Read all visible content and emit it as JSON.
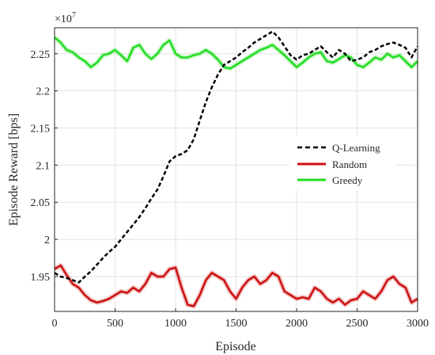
{
  "chart_data": {
    "type": "line",
    "title": "",
    "xlabel": "Episode",
    "ylabel": "Episode Reward [bps]",
    "exponent_label": "×10",
    "exponent_power": "7",
    "xlim": [
      0,
      3000
    ],
    "ylim": [
      1.903,
      2.285
    ],
    "x_ticks": [
      0,
      500,
      1000,
      1500,
      2000,
      2500,
      3000
    ],
    "y_ticks": [
      1.95,
      2.0,
      2.05,
      2.1,
      2.15,
      2.2,
      2.25
    ],
    "grid": true,
    "legend_position": "right",
    "series": [
      {
        "name": "Q-Learning",
        "color": "#000000",
        "style": "dashed",
        "x": [
          0,
          50,
          100,
          150,
          200,
          250,
          300,
          350,
          400,
          450,
          500,
          550,
          600,
          650,
          700,
          750,
          800,
          850,
          900,
          950,
          1000,
          1050,
          1100,
          1150,
          1200,
          1250,
          1300,
          1350,
          1400,
          1450,
          1500,
          1550,
          1600,
          1650,
          1700,
          1750,
          1800,
          1850,
          1900,
          1950,
          2000,
          2050,
          2100,
          2150,
          2200,
          2250,
          2300,
          2350,
          2400,
          2450,
          2500,
          2550,
          2600,
          2650,
          2700,
          2750,
          2800,
          2850,
          2900,
          2950,
          3000
        ],
        "values": [
          1.955,
          1.95,
          1.948,
          1.945,
          1.942,
          1.95,
          1.957,
          1.966,
          1.975,
          1.983,
          1.99,
          2.0,
          2.01,
          2.02,
          2.03,
          2.042,
          2.055,
          2.067,
          2.085,
          2.105,
          2.112,
          2.115,
          2.12,
          2.135,
          2.16,
          2.185,
          2.205,
          2.222,
          2.235,
          2.24,
          2.245,
          2.252,
          2.258,
          2.265,
          2.27,
          2.275,
          2.28,
          2.272,
          2.26,
          2.248,
          2.242,
          2.248,
          2.25,
          2.255,
          2.26,
          2.252,
          2.245,
          2.255,
          2.25,
          2.24,
          2.242,
          2.245,
          2.252,
          2.255,
          2.26,
          2.263,
          2.265,
          2.262,
          2.258,
          2.245,
          2.26
        ]
      },
      {
        "name": "Random",
        "color": "#cc1010",
        "style": "solid",
        "x": [
          0,
          50,
          100,
          150,
          200,
          250,
          300,
          350,
          400,
          450,
          500,
          550,
          600,
          650,
          700,
          750,
          800,
          850,
          900,
          950,
          1000,
          1050,
          1100,
          1150,
          1200,
          1250,
          1300,
          1350,
          1400,
          1450,
          1500,
          1550,
          1600,
          1650,
          1700,
          1750,
          1800,
          1850,
          1900,
          1950,
          2000,
          2050,
          2100,
          2150,
          2200,
          2250,
          2300,
          2350,
          2400,
          2450,
          2500,
          2550,
          2600,
          2650,
          2700,
          2750,
          2800,
          2850,
          2900,
          2950,
          3000
        ],
        "values": [
          1.96,
          1.965,
          1.952,
          1.94,
          1.935,
          1.925,
          1.918,
          1.915,
          1.917,
          1.92,
          1.925,
          1.93,
          1.928,
          1.935,
          1.93,
          1.94,
          1.955,
          1.95,
          1.95,
          1.96,
          1.962,
          1.935,
          1.912,
          1.91,
          1.925,
          1.945,
          1.955,
          1.95,
          1.945,
          1.93,
          1.92,
          1.935,
          1.945,
          1.95,
          1.94,
          1.945,
          1.955,
          1.95,
          1.93,
          1.925,
          1.92,
          1.922,
          1.92,
          1.935,
          1.93,
          1.92,
          1.915,
          1.92,
          1.912,
          1.918,
          1.92,
          1.93,
          1.925,
          1.92,
          1.93,
          1.945,
          1.95,
          1.94,
          1.935,
          1.915,
          1.92
        ]
      },
      {
        "name": "Greedy",
        "color": "#22dd22",
        "style": "solid",
        "x": [
          0,
          50,
          100,
          150,
          200,
          250,
          300,
          350,
          400,
          450,
          500,
          550,
          600,
          650,
          700,
          750,
          800,
          850,
          900,
          950,
          1000,
          1050,
          1100,
          1150,
          1200,
          1250,
          1300,
          1350,
          1400,
          1450,
          1500,
          1550,
          1600,
          1650,
          1700,
          1750,
          1800,
          1850,
          1900,
          1950,
          2000,
          2050,
          2100,
          2150,
          2200,
          2250,
          2300,
          2350,
          2400,
          2450,
          2500,
          2550,
          2600,
          2650,
          2700,
          2750,
          2800,
          2850,
          2900,
          2950,
          3000
        ],
        "values": [
          2.272,
          2.265,
          2.255,
          2.252,
          2.245,
          2.24,
          2.232,
          2.238,
          2.248,
          2.25,
          2.255,
          2.248,
          2.24,
          2.258,
          2.262,
          2.25,
          2.243,
          2.25,
          2.262,
          2.268,
          2.25,
          2.245,
          2.245,
          2.248,
          2.25,
          2.255,
          2.25,
          2.242,
          2.232,
          2.23,
          2.235,
          2.24,
          2.245,
          2.25,
          2.255,
          2.258,
          2.262,
          2.255,
          2.248,
          2.24,
          2.232,
          2.238,
          2.245,
          2.25,
          2.252,
          2.24,
          2.238,
          2.243,
          2.248,
          2.245,
          2.235,
          2.232,
          2.238,
          2.245,
          2.242,
          2.25,
          2.245,
          2.248,
          2.24,
          2.232,
          2.24
        ]
      }
    ]
  }
}
